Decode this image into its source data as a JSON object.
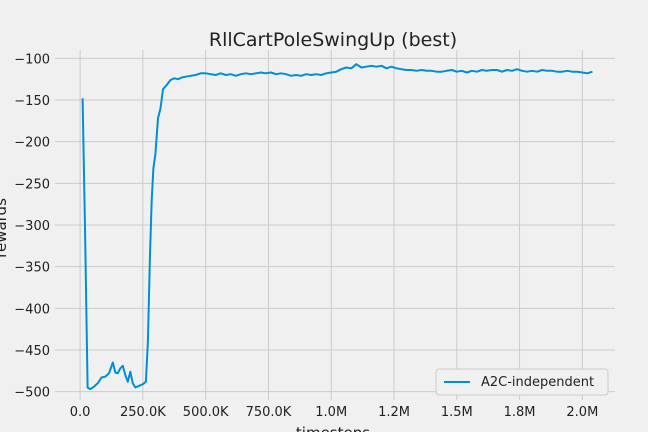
{
  "chart_data": {
    "type": "line",
    "title": "RllCartPoleSwingUp (best)",
    "xlabel": "timesteps",
    "ylabel": "rewards",
    "xlim": [
      -100000,
      2130000
    ],
    "ylim": [
      -510,
      -90
    ],
    "grid": true,
    "legend_position": "lower-right",
    "xticks": [
      0,
      250000,
      500000,
      750000,
      1000000,
      1250000,
      1500000,
      1750000,
      2000000
    ],
    "xtick_labels": [
      "0.0",
      "250.0K",
      "500.0K",
      "750.0K",
      "1.0M",
      "1.2M",
      "1.5M",
      "1.8M",
      "2.0M"
    ],
    "yticks": [
      -500,
      -450,
      -400,
      -350,
      -300,
      -250,
      -200,
      -150,
      -100
    ],
    "ytick_labels": [
      "−500",
      "−450",
      "−400",
      "−350",
      "−300",
      "−250",
      "−200",
      "−150",
      "−100"
    ],
    "series": [
      {
        "name": "A2C-independent",
        "color": "#008fd5",
        "x": [
          10000,
          20000,
          30000,
          40000,
          55000,
          70000,
          85000,
          100000,
          115000,
          130000,
          140000,
          150000,
          160000,
          170000,
          180000,
          190000,
          200000,
          210000,
          220000,
          235000,
          250000,
          262000,
          270000,
          278000,
          285000,
          292000,
          300000,
          310000,
          320000,
          330000,
          345000,
          360000,
          375000,
          390000,
          405000,
          420000,
          440000,
          460000,
          480000,
          500000,
          520000,
          540000,
          560000,
          580000,
          600000,
          620000,
          640000,
          660000,
          680000,
          700000,
          720000,
          740000,
          760000,
          780000,
          800000,
          820000,
          840000,
          860000,
          880000,
          900000,
          920000,
          940000,
          960000,
          980000,
          1000000,
          1020000,
          1040000,
          1060000,
          1080000,
          1100000,
          1120000,
          1140000,
          1160000,
          1180000,
          1200000,
          1220000,
          1240000,
          1260000,
          1280000,
          1300000,
          1320000,
          1340000,
          1360000,
          1380000,
          1400000,
          1420000,
          1440000,
          1460000,
          1480000,
          1500000,
          1520000,
          1540000,
          1560000,
          1580000,
          1600000,
          1620000,
          1640000,
          1660000,
          1680000,
          1700000,
          1720000,
          1740000,
          1760000,
          1780000,
          1800000,
          1820000,
          1840000,
          1860000,
          1880000,
          1900000,
          1920000,
          1940000,
          1960000,
          1980000,
          2000000,
          2020000,
          2040000
        ],
        "y": [
          -148,
          -310,
          -495,
          -497,
          -494,
          -490,
          -483,
          -482,
          -478,
          -465,
          -477,
          -478,
          -472,
          -469,
          -480,
          -488,
          -476,
          -490,
          -495,
          -493,
          -491,
          -488,
          -440,
          -340,
          -270,
          -232,
          -215,
          -172,
          -160,
          -137,
          -132,
          -126,
          -124,
          -125,
          -123,
          -122,
          -121,
          -120,
          -118,
          -118,
          -119,
          -120,
          -118,
          -120,
          -119,
          -121,
          -119,
          -118,
          -119,
          -118,
          -117,
          -118,
          -117,
          -119,
          -118,
          -119,
          -121,
          -120,
          -121,
          -119,
          -120,
          -119,
          -120,
          -118,
          -117,
          -116,
          -113,
          -111,
          -112,
          -107,
          -111,
          -110,
          -109,
          -110,
          -109,
          -112,
          -110,
          -112,
          -113,
          -114,
          -114,
          -115,
          -114,
          -115,
          -115,
          -116,
          -116,
          -115,
          -114,
          -116,
          -115,
          -117,
          -115,
          -116,
          -114,
          -115,
          -114,
          -114,
          -116,
          -114,
          -115,
          -113,
          -115,
          -116,
          -115,
          -116,
          -114,
          -115,
          -115,
          -116,
          -116,
          -115,
          -116,
          -116,
          -117,
          -118,
          -116
        ]
      }
    ]
  }
}
